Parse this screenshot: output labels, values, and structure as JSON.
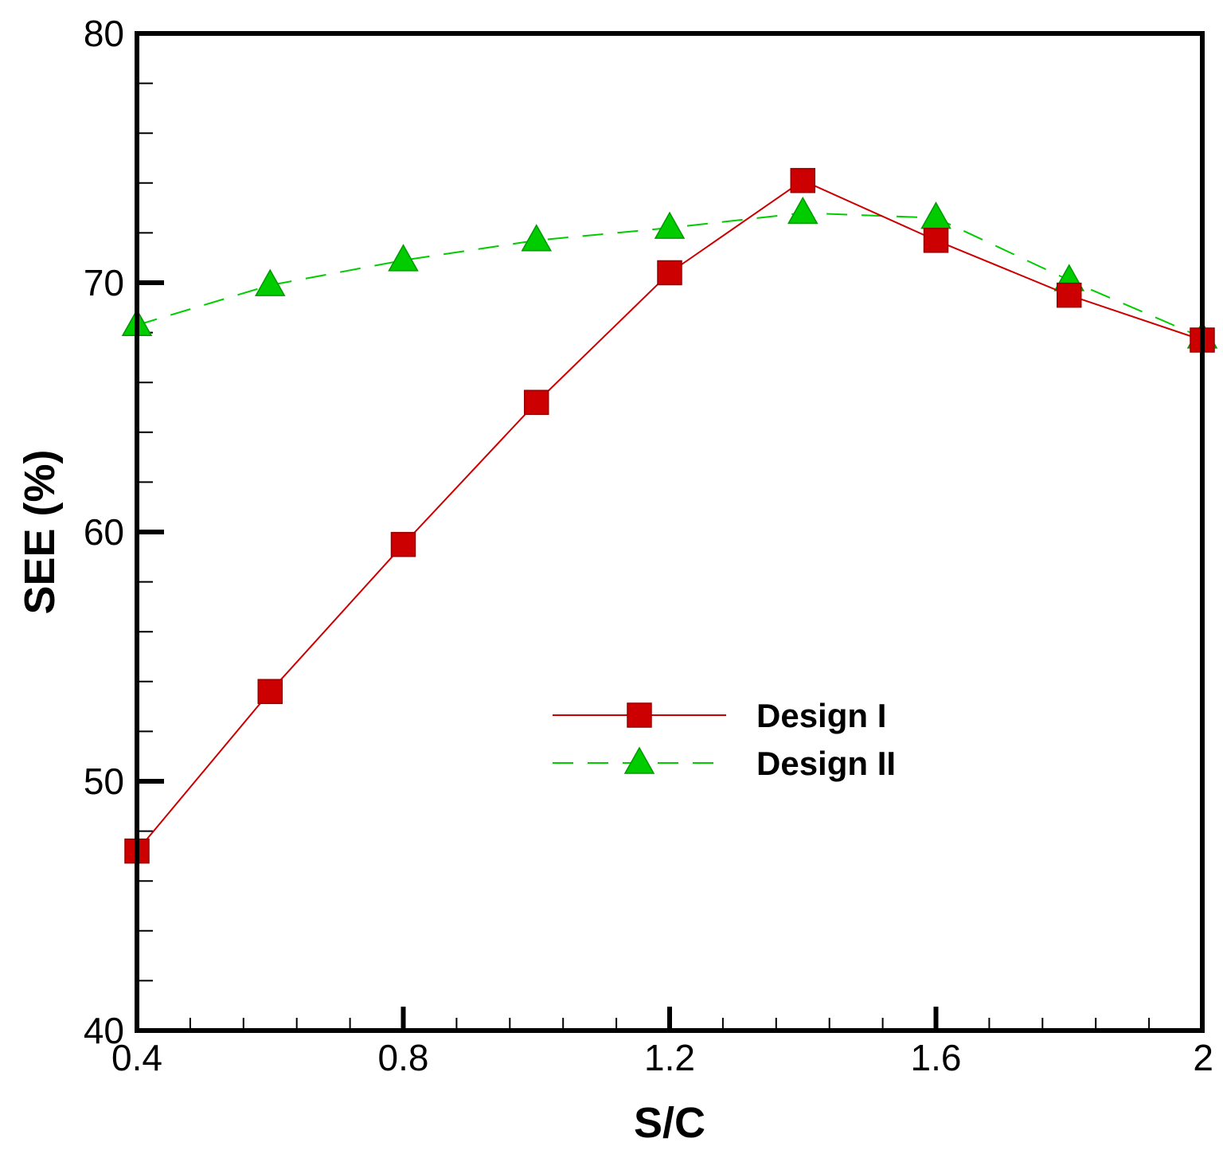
{
  "chart_data": {
    "type": "line",
    "title": "",
    "xlabel": "S/C",
    "ylabel": "SEE (%)",
    "xlim": [
      0.4,
      2.0
    ],
    "ylim": [
      40,
      80
    ],
    "xticks": [
      0.4,
      0.8,
      1.2,
      1.6,
      2.0
    ],
    "xtick_labels": [
      "0.4",
      "0.8",
      "1.2",
      "1.6",
      "2"
    ],
    "yticks": [
      40,
      50,
      60,
      70,
      80
    ],
    "ytick_labels": [
      "40",
      "50",
      "60",
      "70",
      "80"
    ],
    "x": [
      0.4,
      0.6,
      0.8,
      1.0,
      1.2,
      1.4,
      1.6,
      1.8,
      2.0
    ],
    "series": [
      {
        "name": "Design I",
        "values": [
          47.2,
          53.6,
          59.5,
          65.2,
          70.4,
          74.1,
          71.7,
          69.5,
          67.7
        ],
        "color": "#cc0000",
        "marker": "square",
        "line_style": "solid"
      },
      {
        "name": "Design II",
        "values": [
          68.3,
          69.9,
          70.9,
          71.7,
          72.2,
          72.8,
          72.6,
          70.1,
          67.8
        ],
        "color": "#00cc00",
        "marker": "triangle",
        "line_style": "dashed"
      }
    ],
    "legend_position": "center-right",
    "grid": false
  }
}
